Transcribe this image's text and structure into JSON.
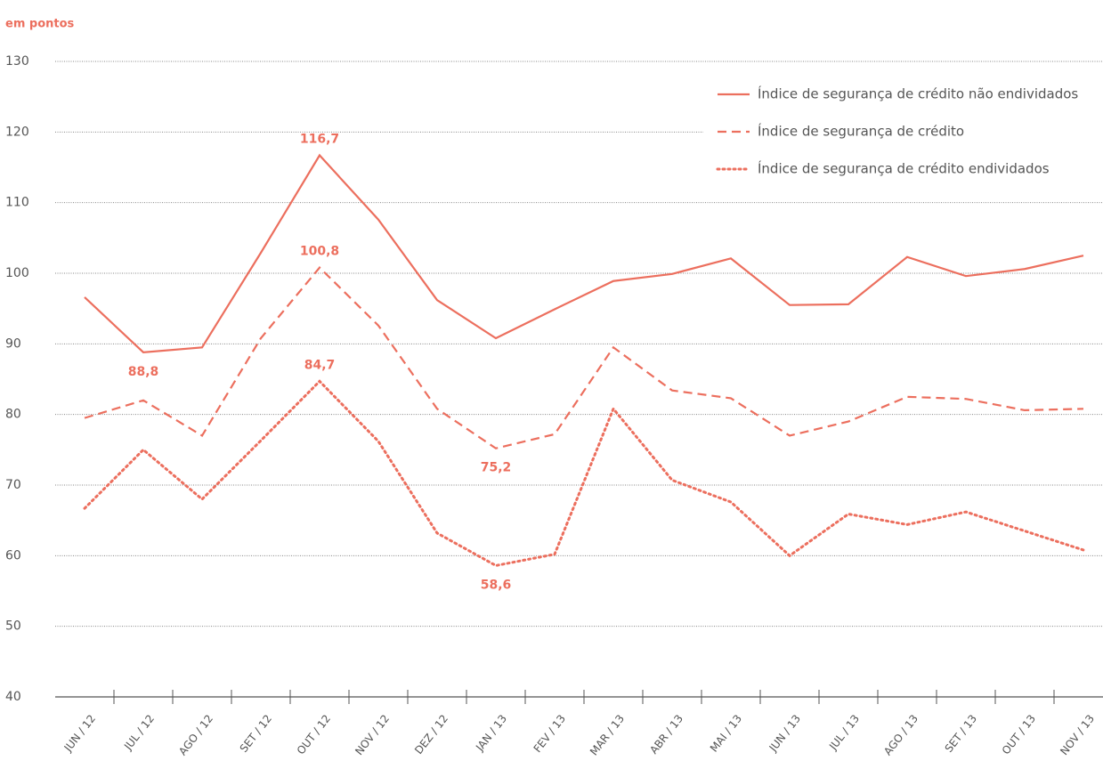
{
  "chart_data": {
    "type": "line",
    "subtitle": "em pontos",
    "categories": [
      "JUN / 12",
      "JUL / 12",
      "AGO / 12",
      "SET / 12",
      "OUT / 12",
      "NOV / 12",
      "DEZ / 12",
      "JAN / 13",
      "FEV / 13",
      "MAR / 13",
      "ABR / 13",
      "MAI / 13",
      "JUN / 13",
      "JUL / 13",
      "AGO / 13",
      "SET / 13",
      "OUT / 13",
      "NOV / 13"
    ],
    "series": [
      {
        "name": "Índice de segurança de crédito não endividados",
        "color": "#ec6f5e",
        "style": "solid",
        "values": [
          96.6,
          88.8,
          89.5,
          102.9,
          116.7,
          107.6,
          96.2,
          90.8,
          94.9,
          98.9,
          99.9,
          102.1,
          95.5,
          95.6,
          102.3,
          99.6,
          100.6,
          102.5
        ],
        "value_labels": [
          null,
          "88,8",
          null,
          null,
          "116,7",
          null,
          null,
          null,
          null,
          null,
          null,
          null,
          null,
          null,
          null,
          null,
          null,
          null
        ]
      },
      {
        "name": "Índice de segurança de crédito",
        "color": "#ec6f5e",
        "style": "dashed",
        "values": [
          79.5,
          82.0,
          77.0,
          90.8,
          100.8,
          92.6,
          80.8,
          75.2,
          77.2,
          89.5,
          83.4,
          82.3,
          77.0,
          79.0,
          82.5,
          82.2,
          80.6,
          80.8
        ],
        "value_labels": [
          null,
          null,
          null,
          null,
          "100,8",
          null,
          null,
          "75,2",
          null,
          null,
          null,
          null,
          null,
          null,
          null,
          null,
          null,
          null
        ]
      },
      {
        "name": "Índice de segurança de crédito endividados",
        "color": "#ec6f5e",
        "style": "dotted",
        "values": [
          66.7,
          75.0,
          68.0,
          76.3,
          84.7,
          76.2,
          63.2,
          58.6,
          60.2,
          80.8,
          70.7,
          67.6,
          60.0,
          65.9,
          64.4,
          66.2,
          63.5,
          60.8
        ],
        "value_labels": [
          null,
          null,
          null,
          null,
          "84,7",
          null,
          null,
          "58,6",
          null,
          null,
          null,
          null,
          null,
          null,
          null,
          null,
          null,
          null
        ]
      }
    ],
    "ylim": [
      40,
      130
    ],
    "yticks": [
      40,
      50,
      60,
      70,
      80,
      90,
      100,
      110,
      120,
      130
    ],
    "grid": true,
    "legend": "top-right"
  }
}
